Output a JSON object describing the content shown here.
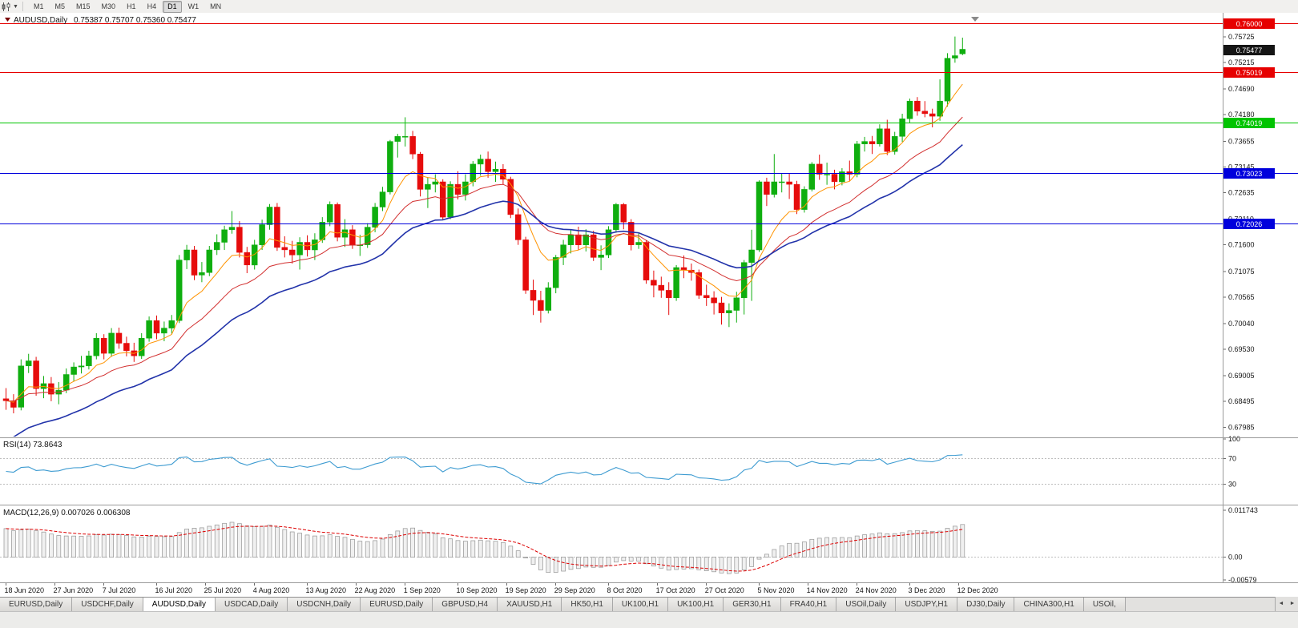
{
  "toolbar": {
    "timeframes": [
      "M1",
      "M5",
      "M15",
      "M30",
      "H1",
      "H4",
      "D1",
      "W1",
      "MN"
    ],
    "active_timeframe": "D1"
  },
  "chart": {
    "title": "AUDUSD,Daily",
    "ohlc": "0.75387 0.75707 0.75360 0.75477",
    "axis": {
      "top_price": 0.762,
      "bottom_price": 0.678,
      "ticks": [
        "0.75725",
        "0.75215",
        "0.74690",
        "0.74180",
        "0.73655",
        "0.73145",
        "0.72635",
        "0.72110",
        "0.71600",
        "0.71075",
        "0.70565",
        "0.70040",
        "0.69530",
        "0.69005",
        "0.68495",
        "0.67985"
      ]
    },
    "levels": [
      {
        "label": "0.76000",
        "price": 0.76,
        "color": "#e60000",
        "text_color": "#ffffff"
      },
      {
        "label": "0.75019",
        "price": 0.75019,
        "color": "#e60000",
        "text_color": "#ffffff"
      },
      {
        "label": "0.74019",
        "price": 0.74019,
        "color": "#00c400",
        "text_color": "#ffffff"
      },
      {
        "label": "0.73023",
        "price": 0.73023,
        "color": "#0000dc",
        "text_color": "#ffffff"
      },
      {
        "label": "0.72026",
        "price": 0.72026,
        "color": "#0000dc",
        "text_color": "#ffffff"
      }
    ],
    "current_price": {
      "label": "0.75477",
      "price": 0.75477,
      "bg": "#151515",
      "text_color": "#ffffff"
    }
  },
  "chart_data": {
    "type": "candlestick",
    "symbol": "AUDUSD",
    "timeframe": "Daily",
    "up_color": "#0fae0f",
    "down_color": "#e60c0c",
    "candles": [
      [
        0.6855,
        0.6876,
        0.6833,
        0.6851
      ],
      [
        0.6851,
        0.6864,
        0.6826,
        0.6838
      ],
      [
        0.6838,
        0.6933,
        0.6832,
        0.692
      ],
      [
        0.692,
        0.6944,
        0.6906,
        0.693
      ],
      [
        0.693,
        0.6938,
        0.6861,
        0.6875
      ],
      [
        0.6875,
        0.69,
        0.6856,
        0.6885
      ],
      [
        0.6885,
        0.6898,
        0.685,
        0.6864
      ],
      [
        0.6864,
        0.6888,
        0.6844,
        0.6872
      ],
      [
        0.6872,
        0.6915,
        0.6866,
        0.6903
      ],
      [
        0.6903,
        0.6927,
        0.6889,
        0.6918
      ],
      [
        0.6918,
        0.694,
        0.6905,
        0.692
      ],
      [
        0.692,
        0.695,
        0.6913,
        0.694
      ],
      [
        0.694,
        0.6985,
        0.6933,
        0.6975
      ],
      [
        0.6975,
        0.6983,
        0.6933,
        0.6945
      ],
      [
        0.6945,
        0.6995,
        0.6938,
        0.6985
      ],
      [
        0.6985,
        0.6996,
        0.6954,
        0.6965
      ],
      [
        0.6965,
        0.6978,
        0.6939,
        0.695
      ],
      [
        0.695,
        0.6966,
        0.6928,
        0.694
      ],
      [
        0.694,
        0.6985,
        0.6934,
        0.6975
      ],
      [
        0.6975,
        0.7018,
        0.6968,
        0.701
      ],
      [
        0.701,
        0.702,
        0.6973,
        0.6985
      ],
      [
        0.6985,
        0.7008,
        0.6969,
        0.6995
      ],
      [
        0.6995,
        0.7021,
        0.6984,
        0.701
      ],
      [
        0.701,
        0.714,
        0.7005,
        0.713
      ],
      [
        0.713,
        0.716,
        0.7112,
        0.715
      ],
      [
        0.715,
        0.7158,
        0.709,
        0.71
      ],
      [
        0.71,
        0.7126,
        0.7086,
        0.7105
      ],
      [
        0.7105,
        0.7158,
        0.7098,
        0.715
      ],
      [
        0.715,
        0.7181,
        0.714,
        0.7165
      ],
      [
        0.7165,
        0.7198,
        0.715,
        0.719
      ],
      [
        0.719,
        0.7227,
        0.7182,
        0.7195
      ],
      [
        0.7195,
        0.7207,
        0.7135,
        0.7145
      ],
      [
        0.7145,
        0.7156,
        0.7104,
        0.712
      ],
      [
        0.712,
        0.717,
        0.7111,
        0.716
      ],
      [
        0.716,
        0.721,
        0.715,
        0.72
      ],
      [
        0.72,
        0.7241,
        0.719,
        0.7235
      ],
      [
        0.7235,
        0.7243,
        0.7148,
        0.7155
      ],
      [
        0.7155,
        0.7177,
        0.7135,
        0.715
      ],
      [
        0.715,
        0.7168,
        0.7123,
        0.714
      ],
      [
        0.714,
        0.7175,
        0.7111,
        0.7165
      ],
      [
        0.7165,
        0.7179,
        0.7137,
        0.715
      ],
      [
        0.715,
        0.7183,
        0.713,
        0.717
      ],
      [
        0.717,
        0.7215,
        0.7164,
        0.7205
      ],
      [
        0.7205,
        0.7246,
        0.7197,
        0.724
      ],
      [
        0.724,
        0.7244,
        0.7167,
        0.7175
      ],
      [
        0.7175,
        0.7211,
        0.7156,
        0.719
      ],
      [
        0.719,
        0.7199,
        0.7152,
        0.716
      ],
      [
        0.716,
        0.718,
        0.7138,
        0.716
      ],
      [
        0.716,
        0.7203,
        0.7154,
        0.7195
      ],
      [
        0.7195,
        0.7243,
        0.7185,
        0.7235
      ],
      [
        0.7235,
        0.7275,
        0.7227,
        0.7265
      ],
      [
        0.7265,
        0.7368,
        0.726,
        0.7365
      ],
      [
        0.7365,
        0.738,
        0.7333,
        0.7375
      ],
      [
        0.7375,
        0.7413,
        0.7355,
        0.7375
      ],
      [
        0.7375,
        0.7386,
        0.733,
        0.734
      ],
      [
        0.734,
        0.7344,
        0.7256,
        0.727
      ],
      [
        0.727,
        0.7293,
        0.7233,
        0.728
      ],
      [
        0.728,
        0.73,
        0.7264,
        0.7285
      ],
      [
        0.7285,
        0.729,
        0.7209,
        0.7215
      ],
      [
        0.7215,
        0.7286,
        0.7211,
        0.728
      ],
      [
        0.728,
        0.7306,
        0.725,
        0.726
      ],
      [
        0.726,
        0.73,
        0.7248,
        0.7285
      ],
      [
        0.7285,
        0.7326,
        0.7276,
        0.732
      ],
      [
        0.732,
        0.7339,
        0.7297,
        0.733
      ],
      [
        0.733,
        0.7345,
        0.7293,
        0.7305
      ],
      [
        0.7305,
        0.7325,
        0.7285,
        0.731
      ],
      [
        0.731,
        0.732,
        0.7279,
        0.729
      ],
      [
        0.729,
        0.7295,
        0.7213,
        0.722
      ],
      [
        0.722,
        0.7232,
        0.716,
        0.717
      ],
      [
        0.717,
        0.7176,
        0.7063,
        0.707
      ],
      [
        0.707,
        0.7091,
        0.7021,
        0.705
      ],
      [
        0.705,
        0.7069,
        0.7006,
        0.703
      ],
      [
        0.703,
        0.7086,
        0.7024,
        0.7075
      ],
      [
        0.7075,
        0.714,
        0.7064,
        0.7135
      ],
      [
        0.7135,
        0.717,
        0.712,
        0.716
      ],
      [
        0.716,
        0.719,
        0.7143,
        0.718
      ],
      [
        0.718,
        0.7196,
        0.715,
        0.716
      ],
      [
        0.716,
        0.7191,
        0.7147,
        0.718
      ],
      [
        0.718,
        0.7188,
        0.7128,
        0.7135
      ],
      [
        0.7135,
        0.7159,
        0.711,
        0.714
      ],
      [
        0.714,
        0.7197,
        0.7134,
        0.719
      ],
      [
        0.719,
        0.7243,
        0.7184,
        0.724
      ],
      [
        0.724,
        0.7243,
        0.7191,
        0.7205
      ],
      [
        0.7205,
        0.7211,
        0.7149,
        0.716
      ],
      [
        0.716,
        0.7183,
        0.7152,
        0.7165
      ],
      [
        0.7165,
        0.7169,
        0.7083,
        0.709
      ],
      [
        0.709,
        0.7109,
        0.7056,
        0.708
      ],
      [
        0.708,
        0.7097,
        0.7055,
        0.707
      ],
      [
        0.707,
        0.7086,
        0.7021,
        0.7055
      ],
      [
        0.7055,
        0.712,
        0.7049,
        0.7115
      ],
      [
        0.7115,
        0.7139,
        0.7094,
        0.711
      ],
      [
        0.711,
        0.7123,
        0.7089,
        0.7105
      ],
      [
        0.7105,
        0.7111,
        0.7053,
        0.706
      ],
      [
        0.706,
        0.7081,
        0.7039,
        0.7055
      ],
      [
        0.7055,
        0.7068,
        0.7022,
        0.7045
      ],
      [
        0.7045,
        0.7057,
        0.7002,
        0.7025
      ],
      [
        0.7025,
        0.7044,
        0.6997,
        0.703
      ],
      [
        0.703,
        0.7067,
        0.7006,
        0.7055
      ],
      [
        0.7055,
        0.713,
        0.7022,
        0.7125
      ],
      [
        0.7125,
        0.719,
        0.7049,
        0.715
      ],
      [
        0.715,
        0.7288,
        0.7146,
        0.7285
      ],
      [
        0.7285,
        0.7293,
        0.7237,
        0.726
      ],
      [
        0.726,
        0.734,
        0.7254,
        0.7285
      ],
      [
        0.7285,
        0.7302,
        0.7264,
        0.7285
      ],
      [
        0.7285,
        0.7301,
        0.7251,
        0.728
      ],
      [
        0.728,
        0.7287,
        0.7221,
        0.723
      ],
      [
        0.723,
        0.7276,
        0.7224,
        0.727
      ],
      [
        0.727,
        0.7324,
        0.7266,
        0.732
      ],
      [
        0.732,
        0.7339,
        0.7289,
        0.73
      ],
      [
        0.73,
        0.7323,
        0.7279,
        0.73
      ],
      [
        0.73,
        0.7309,
        0.727,
        0.7285
      ],
      [
        0.7285,
        0.7312,
        0.7278,
        0.7305
      ],
      [
        0.7305,
        0.7327,
        0.7287,
        0.73
      ],
      [
        0.73,
        0.7366,
        0.7294,
        0.736
      ],
      [
        0.736,
        0.7374,
        0.7345,
        0.7365
      ],
      [
        0.7365,
        0.7376,
        0.734,
        0.736
      ],
      [
        0.736,
        0.7399,
        0.7355,
        0.739
      ],
      [
        0.739,
        0.7408,
        0.7338,
        0.7345
      ],
      [
        0.7345,
        0.7384,
        0.7339,
        0.7375
      ],
      [
        0.7375,
        0.742,
        0.7364,
        0.741
      ],
      [
        0.741,
        0.745,
        0.7401,
        0.7445
      ],
      [
        0.7445,
        0.7453,
        0.7416,
        0.7425
      ],
      [
        0.7425,
        0.7445,
        0.7413,
        0.742
      ],
      [
        0.742,
        0.743,
        0.7393,
        0.7415
      ],
      [
        0.7415,
        0.7488,
        0.7406,
        0.7445
      ],
      [
        0.7445,
        0.754,
        0.7434,
        0.753
      ],
      [
        0.753,
        0.7573,
        0.7521,
        0.7535
      ],
      [
        0.75387,
        0.75707,
        0.7536,
        0.75477
      ]
    ],
    "date_labels": [
      {
        "label": "18 Jun 2020",
        "pos": 0
      },
      {
        "label": "27 Jun 2020",
        "pos": 6.5
      },
      {
        "label": "7 Jul 2020",
        "pos": 13
      },
      {
        "label": "16 Jul 2020",
        "pos": 20
      },
      {
        "label": "25 Jul 2020",
        "pos": 26.5
      },
      {
        "label": "4 Aug 2020",
        "pos": 33
      },
      {
        "label": "13 Aug 2020",
        "pos": 40
      },
      {
        "label": "22 Aug 2020",
        "pos": 46.5
      },
      {
        "label": "1 Sep 2020",
        "pos": 53
      },
      {
        "label": "10 Sep 2020",
        "pos": 60
      },
      {
        "label": "19 Sep 2020",
        "pos": 66.5
      },
      {
        "label": "29 Sep 2020",
        "pos": 73
      },
      {
        "label": "8 Oct 2020",
        "pos": 80
      },
      {
        "label": "17 Oct 2020",
        "pos": 86.5
      },
      {
        "label": "27 Oct 2020",
        "pos": 93
      },
      {
        "label": "5 Nov 2020",
        "pos": 100
      },
      {
        "label": "14 Nov 2020",
        "pos": 106.5
      },
      {
        "label": "24 Nov 2020",
        "pos": 113
      },
      {
        "label": "3 Dec 2020",
        "pos": 120
      },
      {
        "label": "12 Dec 2020",
        "pos": 126.5
      }
    ],
    "moving_averages": [
      {
        "name": "fast",
        "period": 8,
        "color": "#ff9300",
        "width": 1
      },
      {
        "name": "mid",
        "period": 18,
        "color": "#d23030",
        "width": 1
      },
      {
        "name": "slow",
        "period": 30,
        "color": "#2233aa",
        "width": 1.6,
        "seed": 0.677
      }
    ],
    "rsi": {
      "label": "RSI(14) 73.8643",
      "period": 14,
      "color": "#3d9bd1",
      "axis_ticks": [
        {
          "label": "100",
          "value": 100
        },
        {
          "label": "70",
          "value": 70
        },
        {
          "label": "30",
          "value": 30
        }
      ],
      "guide_levels": [
        70,
        30
      ],
      "range": [
        0,
        100
      ]
    },
    "macd": {
      "label": "MACD(12,26,9) 0.007026 0.006308",
      "fast": 12,
      "slow": 26,
      "signal": 9,
      "max": 0.011743,
      "min": -0.00579,
      "axis_ticks": [
        {
          "label": "0.011743",
          "value": 0.011743
        },
        {
          "label": "0.00",
          "value": 0
        },
        {
          "label": "-0.00579",
          "value": -0.00579
        }
      ],
      "histogram_fill": "#f0f0f0",
      "histogram_stroke": "#9a9a9a",
      "signal_color": "#dd0000"
    }
  },
  "tabs": {
    "items": [
      "EURUSD,Daily",
      "USDCHF,Daily",
      "AUDUSD,Daily",
      "USDCAD,Daily",
      "USDCNH,Daily",
      "EURUSD,Daily",
      "GBPUSD,H4",
      "XAUUSD,H1",
      "HK50,H1",
      "UK100,H1",
      "UK100,H1",
      "GER30,H1",
      "FRA40,H1",
      "USOil,Daily",
      "USDJPY,H1",
      "DJ30,Daily",
      "CHINA300,H1",
      "USOil,"
    ],
    "active_index": 2
  }
}
